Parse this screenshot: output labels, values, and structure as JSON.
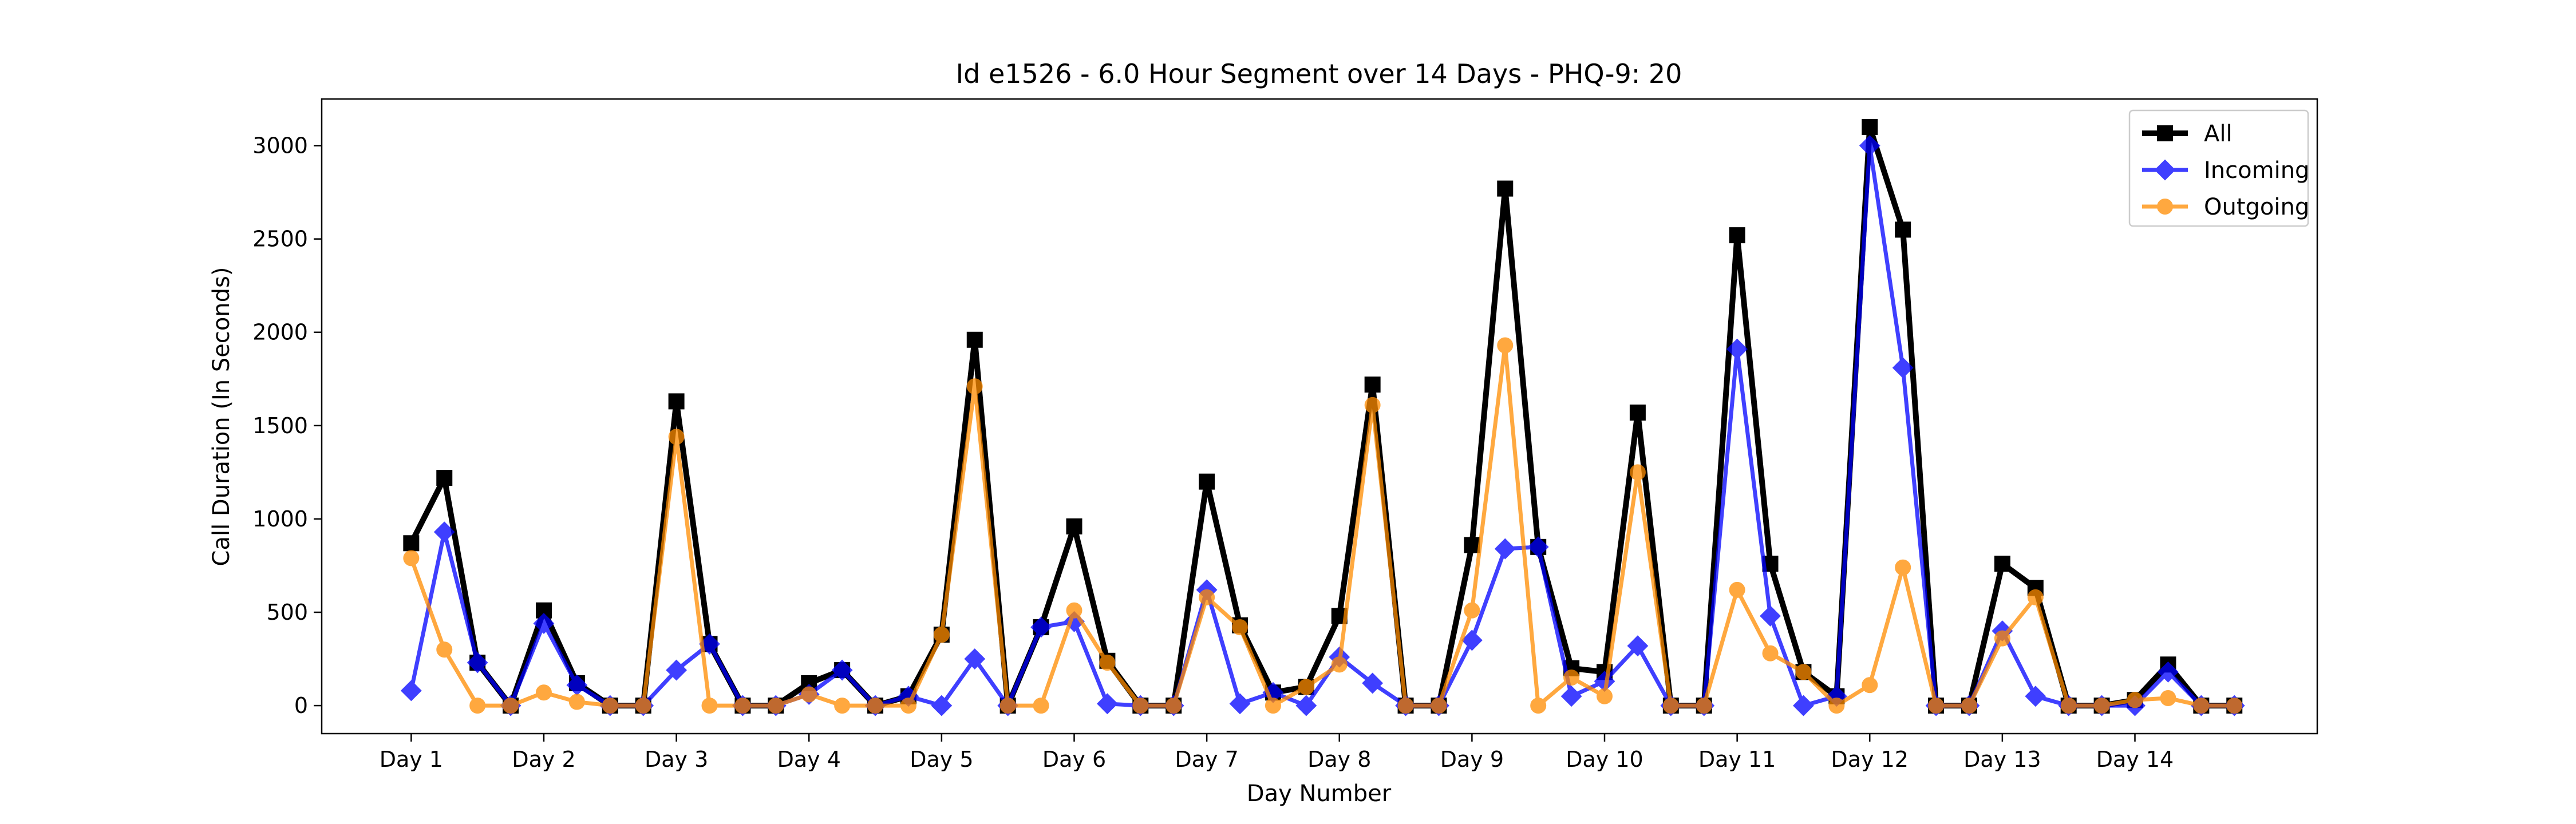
{
  "chart_data": {
    "type": "line",
    "title": "Id e1526 - 6.0 Hour Segment over 14 Days - PHQ-9: 20",
    "xlabel": "Day Number",
    "ylabel": "Call Duration (In Seconds)",
    "ylim": [
      -150,
      3250
    ],
    "yticks": [
      0,
      500,
      1000,
      1500,
      2000,
      2500,
      3000
    ],
    "xticks": [
      {
        "pos": 0,
        "label": "Day 1"
      },
      {
        "pos": 4,
        "label": "Day 2"
      },
      {
        "pos": 8,
        "label": "Day 3"
      },
      {
        "pos": 12,
        "label": "Day 4"
      },
      {
        "pos": 16,
        "label": "Day 5"
      },
      {
        "pos": 20,
        "label": "Day 6"
      },
      {
        "pos": 24,
        "label": "Day 7"
      },
      {
        "pos": 28,
        "label": "Day 8"
      },
      {
        "pos": 32,
        "label": "Day 9"
      },
      {
        "pos": 36,
        "label": "Day 10"
      },
      {
        "pos": 40,
        "label": "Day 11"
      },
      {
        "pos": 44,
        "label": "Day 12"
      },
      {
        "pos": 48,
        "label": "Day 13"
      },
      {
        "pos": 52,
        "label": "Day 14"
      }
    ],
    "xlim": [
      -2.7,
      57.5
    ],
    "grid": false,
    "legend_position": "top-right",
    "series": [
      {
        "name": "All",
        "color": "#000000",
        "marker": "square",
        "values": [
          870,
          1220,
          230,
          0,
          510,
          120,
          0,
          0,
          1630,
          330,
          0,
          0,
          120,
          190,
          0,
          50,
          380,
          1960,
          0,
          420,
          960,
          240,
          0,
          0,
          1200,
          430,
          70,
          100,
          480,
          1720,
          0,
          0,
          860,
          2770,
          850,
          200,
          180,
          1570,
          0,
          0,
          2520,
          760,
          180,
          50,
          3100,
          2550,
          0,
          0,
          760,
          630,
          0,
          0,
          30,
          220,
          0,
          0
        ]
      },
      {
        "name": "Incoming",
        "color": "#0000ff",
        "marker": "diamond",
        "values": [
          80,
          930,
          230,
          0,
          440,
          110,
          0,
          0,
          190,
          330,
          0,
          0,
          60,
          190,
          0,
          50,
          0,
          250,
          0,
          420,
          450,
          10,
          0,
          0,
          620,
          10,
          70,
          0,
          260,
          120,
          0,
          0,
          350,
          840,
          850,
          50,
          130,
          320,
          0,
          0,
          1910,
          480,
          0,
          50,
          3000,
          1810,
          0,
          0,
          400,
          50,
          0,
          0,
          0,
          180,
          0,
          0
        ]
      },
      {
        "name": "Outgoing",
        "color": "#ff8c00",
        "marker": "circle",
        "values": [
          790,
          300,
          0,
          0,
          70,
          20,
          0,
          0,
          1440,
          0,
          0,
          0,
          60,
          0,
          0,
          0,
          380,
          1710,
          0,
          0,
          510,
          230,
          0,
          0,
          580,
          420,
          0,
          100,
          220,
          1610,
          0,
          0,
          510,
          1930,
          0,
          150,
          50,
          1250,
          0,
          0,
          620,
          280,
          180,
          0,
          110,
          740,
          0,
          0,
          360,
          580,
          0,
          0,
          30,
          40,
          0,
          0
        ]
      }
    ]
  }
}
